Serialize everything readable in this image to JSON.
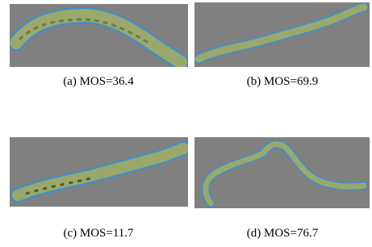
{
  "figure": {
    "panels": [
      {
        "caption": "(a) MOS=36.4"
      },
      {
        "caption": "(b) MOS=69.9"
      },
      {
        "caption": "(c) MOS=11.7"
      },
      {
        "caption": "(d) MOS=76.7"
      }
    ]
  }
}
